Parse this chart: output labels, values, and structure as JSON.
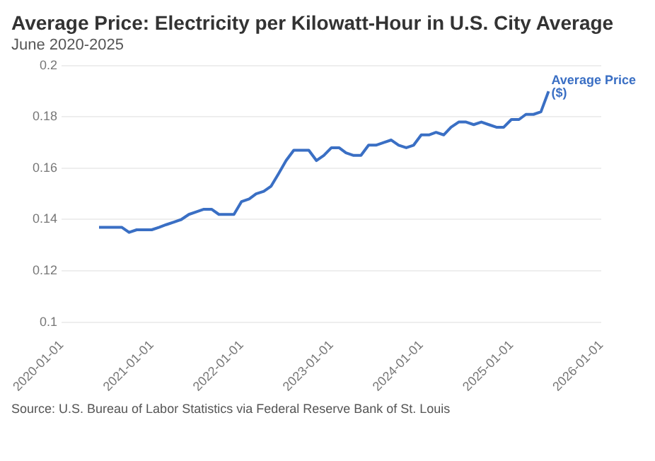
{
  "chart_data": {
    "type": "line",
    "title": "Average Price: Electricity per Kilowatt-Hour in U.S. City Average",
    "subtitle": "June 2020-2025",
    "x": [
      "2020-06",
      "2020-07",
      "2020-08",
      "2020-09",
      "2020-10",
      "2020-11",
      "2020-12",
      "2021-01",
      "2021-02",
      "2021-03",
      "2021-04",
      "2021-05",
      "2021-06",
      "2021-07",
      "2021-08",
      "2021-09",
      "2021-10",
      "2021-11",
      "2021-12",
      "2022-01",
      "2022-02",
      "2022-03",
      "2022-04",
      "2022-05",
      "2022-06",
      "2022-07",
      "2022-08",
      "2022-09",
      "2022-10",
      "2022-11",
      "2022-12",
      "2023-01",
      "2023-02",
      "2023-03",
      "2023-04",
      "2023-05",
      "2023-06",
      "2023-07",
      "2023-08",
      "2023-09",
      "2023-10",
      "2023-11",
      "2023-12",
      "2024-01",
      "2024-02",
      "2024-03",
      "2024-04",
      "2024-05",
      "2024-06",
      "2024-07",
      "2024-08",
      "2024-09",
      "2024-10",
      "2024-11",
      "2024-12",
      "2025-01",
      "2025-02",
      "2025-03",
      "2025-04",
      "2025-05",
      "2025-06"
    ],
    "series": [
      {
        "name": "Average Price ($)",
        "color": "#3a6fc4",
        "values": [
          0.137,
          0.137,
          0.137,
          0.137,
          0.135,
          0.136,
          0.136,
          0.136,
          0.137,
          0.138,
          0.139,
          0.14,
          0.142,
          0.143,
          0.144,
          0.144,
          0.142,
          0.142,
          0.142,
          0.147,
          0.148,
          0.15,
          0.151,
          0.153,
          0.158,
          0.163,
          0.167,
          0.167,
          0.167,
          0.163,
          0.165,
          0.168,
          0.168,
          0.166,
          0.165,
          0.165,
          0.169,
          0.169,
          0.17,
          0.171,
          0.169,
          0.168,
          0.169,
          0.173,
          0.173,
          0.174,
          0.173,
          0.176,
          0.178,
          0.178,
          0.177,
          0.178,
          0.177,
          0.176,
          0.176,
          0.179,
          0.179,
          0.181,
          0.181,
          0.182,
          0.19
        ]
      }
    ],
    "xlim": [
      "2020-01-01",
      "2026-01-01"
    ],
    "xticks": [
      "2020-01-01",
      "2021-01-01",
      "2022-01-01",
      "2023-01-01",
      "2024-01-01",
      "2025-01-01",
      "2026-01-01"
    ],
    "ylim": [
      0.1,
      0.2
    ],
    "yticks": [
      0.1,
      0.12,
      0.14,
      0.16,
      0.18,
      0.2
    ],
    "grid": "y",
    "legend": false,
    "marker": "none",
    "line_style": "solid",
    "annotations": [
      "Source: U.S. Bureau of Labor Statistics via Federal Reserve Bank of St. Louis"
    ]
  }
}
